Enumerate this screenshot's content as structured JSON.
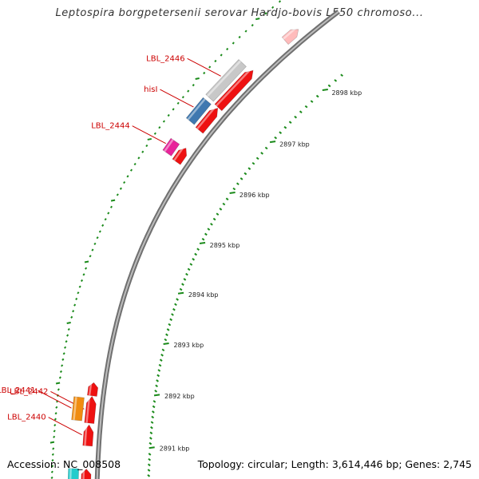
{
  "title": "Leptospira borgpetersenii serovar Hardjo-bovis L550 chromoso...",
  "footer": {
    "accession": "Accession: NC_008508",
    "summary": "Topology: circular; Length: 3,614,446 bp; Genes: 2,745"
  },
  "colors": {
    "gene_red": "#ee1111",
    "gene_label": "#cc0000",
    "scale_green": "#1a8a1a",
    "backbone_grey": "#8a8a8a",
    "pseudogene_grey": "#c8c8c8",
    "hisI_blue": "#3f78b0",
    "magenta": "#e8249a",
    "orange": "#f08c10",
    "cyan": "#22cccc",
    "pink": "#ffbbbb"
  },
  "genes": [
    {
      "id": "g0",
      "label": "",
      "strand": "top",
      "start_kbp": 2898.25,
      "end_kbp": 2898.05,
      "color": "#ffbbbb"
    },
    {
      "id": "g1",
      "label": "",
      "strand": "plus",
      "start_kbp": 2897.53,
      "end_kbp": 2896.88,
      "color": "#ee1111"
    },
    {
      "id": "g2",
      "label": "LBL_2446",
      "strand": "minus",
      "start_kbp": 2897.5,
      "end_kbp": 2896.9,
      "color": "#c8c8c8"
    },
    {
      "id": "g3",
      "label": "",
      "strand": "plus",
      "start_kbp": 2896.87,
      "end_kbp": 2896.48,
      "color": "#ee1111"
    },
    {
      "id": "g4",
      "label": "hisI",
      "strand": "minus",
      "start_kbp": 2896.85,
      "end_kbp": 2896.5,
      "color": "#3f78b0"
    },
    {
      "id": "g5",
      "label": "",
      "strand": "plus",
      "start_kbp": 2896.17,
      "end_kbp": 2895.93,
      "color": "#ee1111"
    },
    {
      "id": "g6",
      "label": "LBL_2444",
      "strand": "minus",
      "start_kbp": 2896.16,
      "end_kbp": 2895.96,
      "color": "#e8249a"
    },
    {
      "id": "g7",
      "label": "",
      "strand": "plus",
      "start_kbp": 2892.08,
      "end_kbp": 2891.85,
      "color": "#ee1111"
    },
    {
      "id": "g8",
      "label": "LBL_2442",
      "strand": "plus",
      "start_kbp": 2891.84,
      "end_kbp": 2891.37,
      "color": "#ee1111"
    },
    {
      "id": "g9",
      "label": "LBL_2441",
      "strand": "minus",
      "start_kbp": 2891.8,
      "end_kbp": 2891.4,
      "color": "#f08c10"
    },
    {
      "id": "g10",
      "label": "LBL_2440",
      "strand": "plus",
      "start_kbp": 2891.34,
      "end_kbp": 2890.97,
      "color": "#ee1111"
    },
    {
      "id": "g11",
      "label": "",
      "strand": "plus",
      "start_kbp": 2890.56,
      "end_kbp": 2890.3,
      "color": "#ee1111"
    },
    {
      "id": "g12",
      "label": "",
      "strand": "minus",
      "start_kbp": 2890.56,
      "end_kbp": 2890.3,
      "color": "#22cccc"
    }
  ],
  "scale_labels": [
    "2898 kbp",
    "2897 kbp",
    "2896 kbp",
    "2895 kbp",
    "2894 kbp",
    "2893 kbp",
    "2892 kbp",
    "2891 kbp"
  ],
  "scale_values": [
    2898,
    2897,
    2896,
    2895,
    2894,
    2893,
    2892,
    2891
  ]
}
